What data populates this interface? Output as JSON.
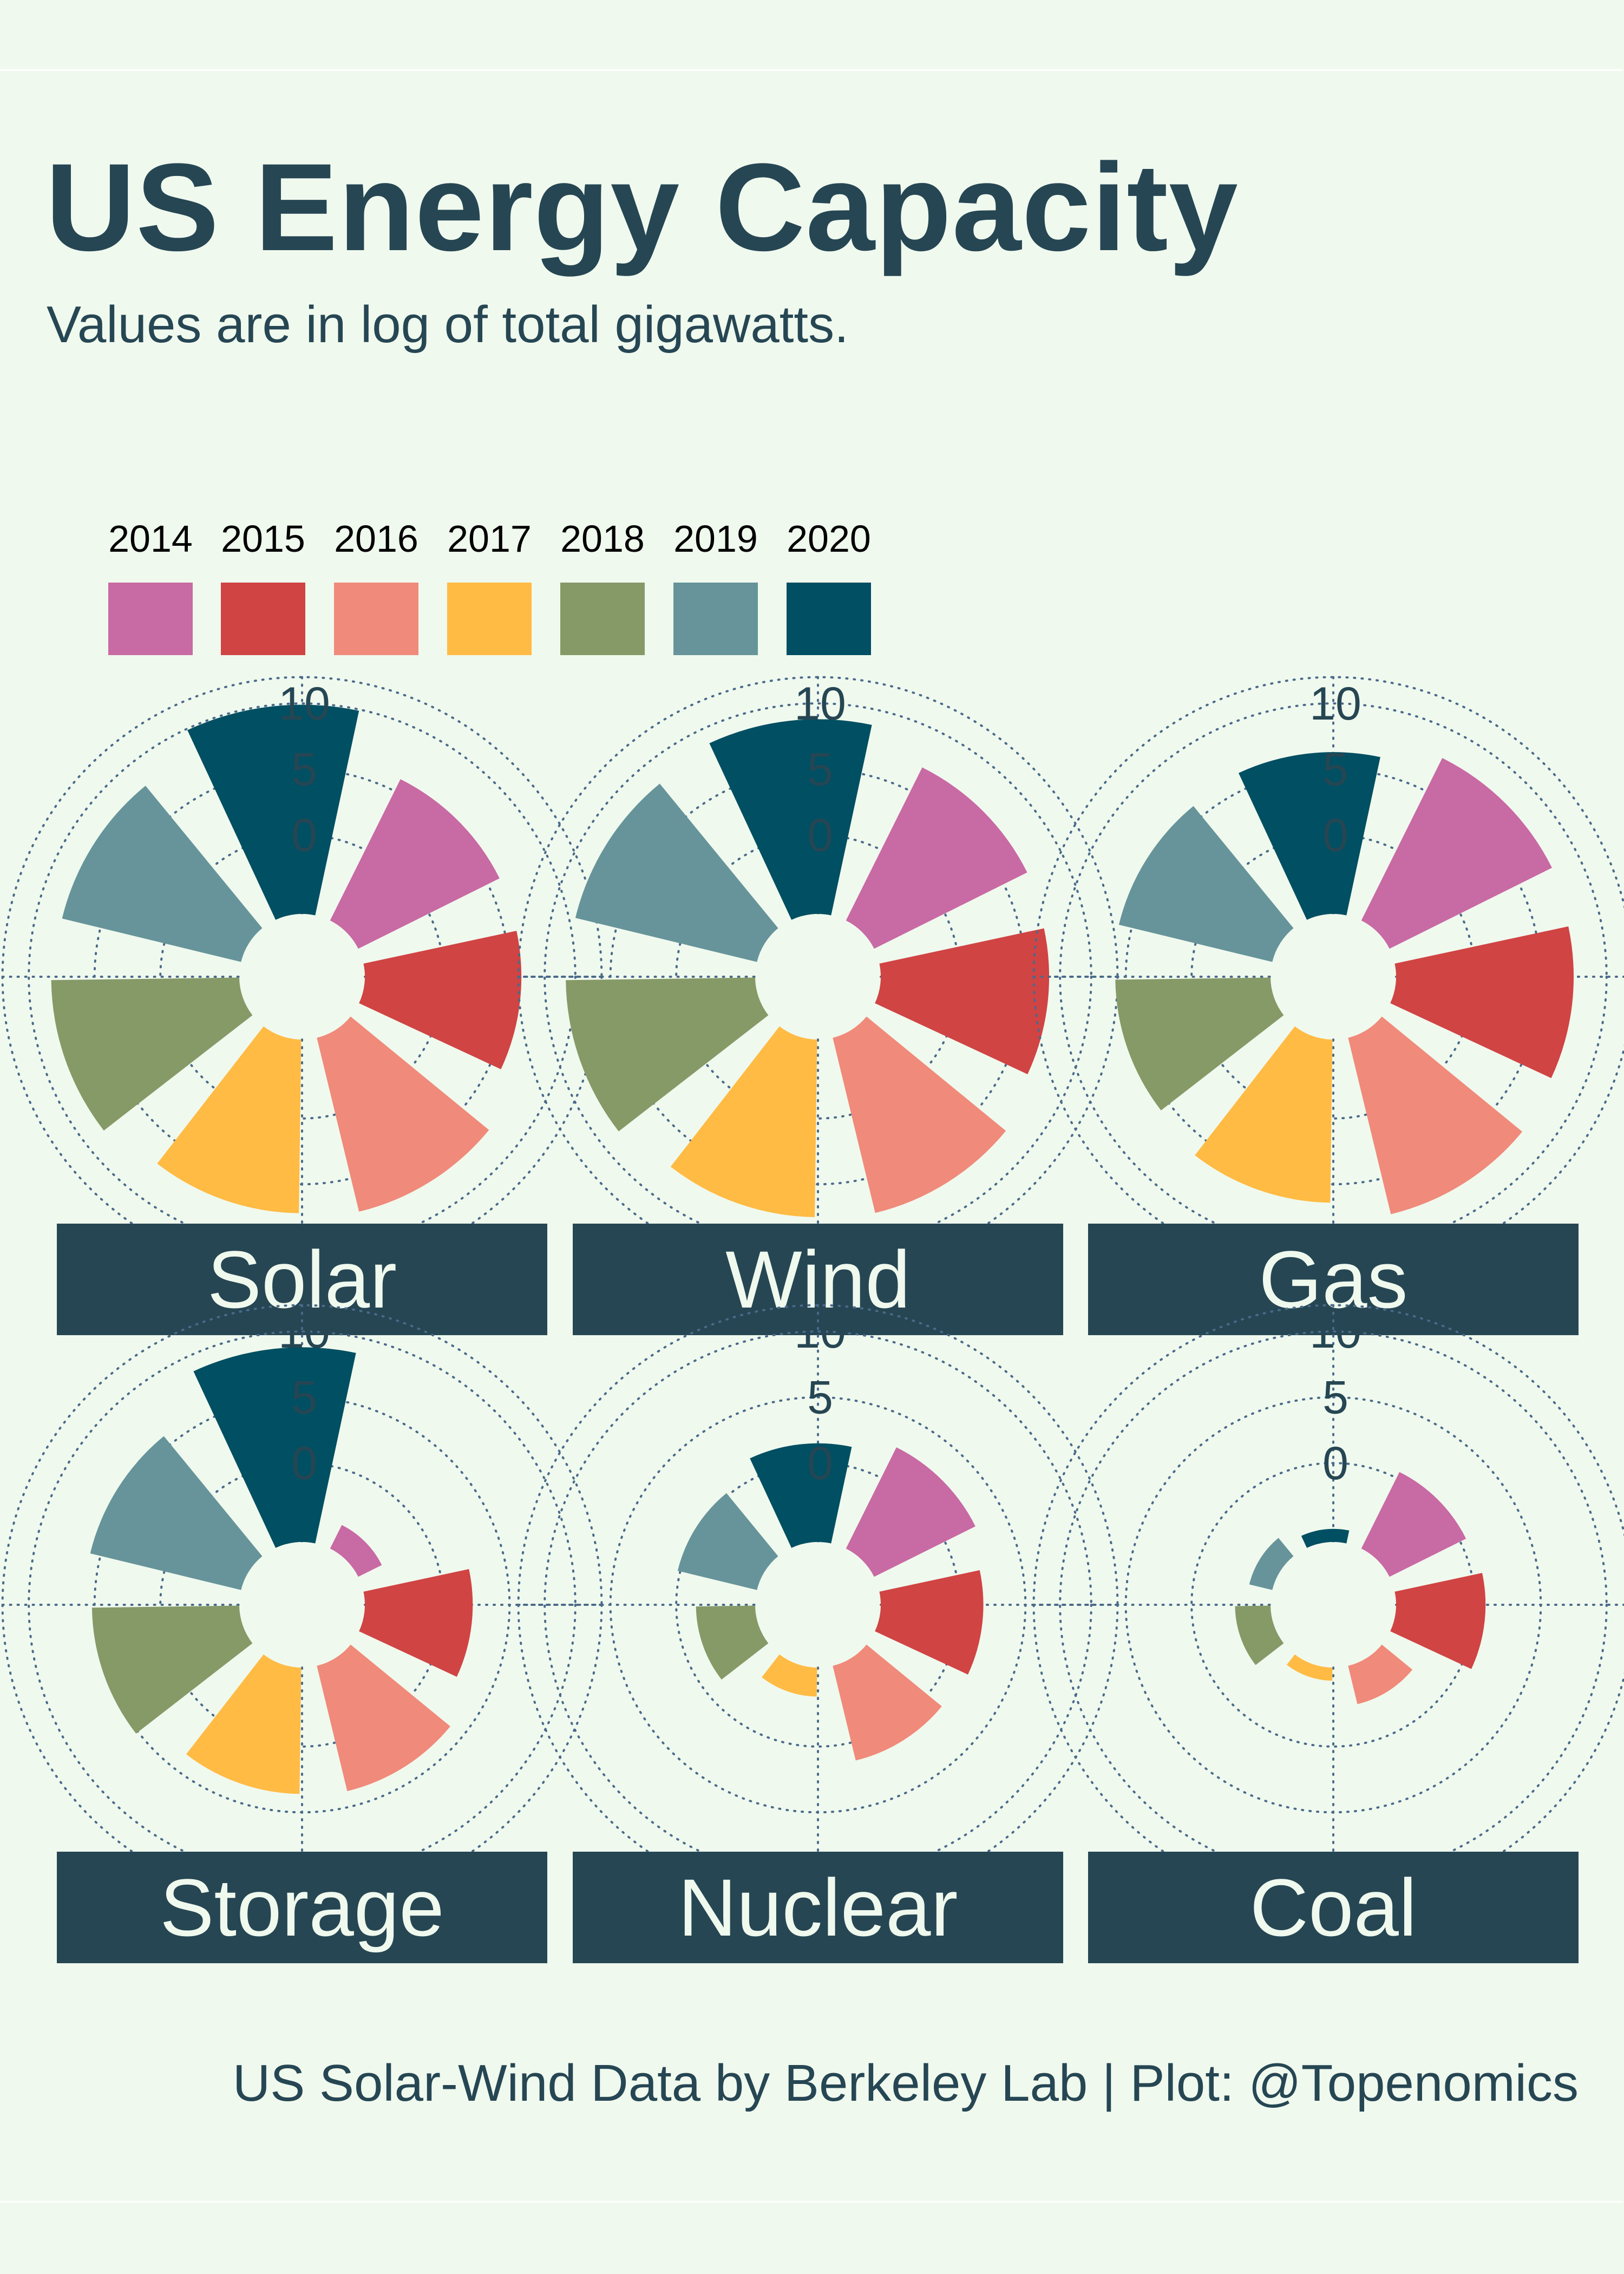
{
  "title": "US Energy Capacity",
  "subtitle": "Values are in log of total gigawatts.",
  "caption": "US Solar-Wind Data by Berkeley Lab | Plot: @Topenomics",
  "legend": [
    {
      "year": "2014",
      "color": "#c86aa4"
    },
    {
      "year": "2015",
      "color": "#d04444"
    },
    {
      "year": "2016",
      "color": "#f08a7a"
    },
    {
      "year": "2017",
      "color": "#ffbb44"
    },
    {
      "year": "2018",
      "color": "#869a68"
    },
    {
      "year": "2019",
      "color": "#66949a"
    },
    {
      "year": "2020",
      "color": "#004f62"
    }
  ],
  "chart_data": {
    "type": "polar-bar",
    "categories": [
      "2014",
      "2015",
      "2016",
      "2017",
      "2018",
      "2019",
      "2020"
    ],
    "colors": [
      "#c86aa4",
      "#d04444",
      "#f08a7a",
      "#ffbb44",
      "#869a68",
      "#66949a",
      "#004f62"
    ],
    "radial_ticks": [
      "0",
      "5",
      "10"
    ],
    "rlim": [
      -6,
      12
    ],
    "grid": true,
    "panels": [
      {
        "name": "Solar",
        "values": [
          6.0,
          5.9,
          7.6,
          7.2,
          8.3,
          8.0,
          9.9
        ]
      },
      {
        "name": "Wind",
        "values": [
          7.0,
          6.8,
          7.7,
          7.5,
          8.4,
          8.2,
          8.8
        ]
      },
      {
        "name": "Gas",
        "values": [
          7.8,
          7.5,
          7.8,
          6.4,
          5.8,
          6.0,
          6.3
        ]
      },
      {
        "name": "Storage",
        "values": [
          -4.0,
          2.2,
          3.8,
          3.6,
          5.2,
          5.8,
          8.8
        ]
      },
      {
        "name": "Nuclear",
        "values": [
          2.6,
          1.8,
          1.4,
          -3.8,
          -1.5,
          0.2,
          1.5
        ]
      },
      {
        "name": "Coal",
        "values": [
          0.5,
          0.8,
          -3.0,
          -5.0,
          -3.3,
          -4.2,
          -5.0
        ]
      }
    ]
  }
}
